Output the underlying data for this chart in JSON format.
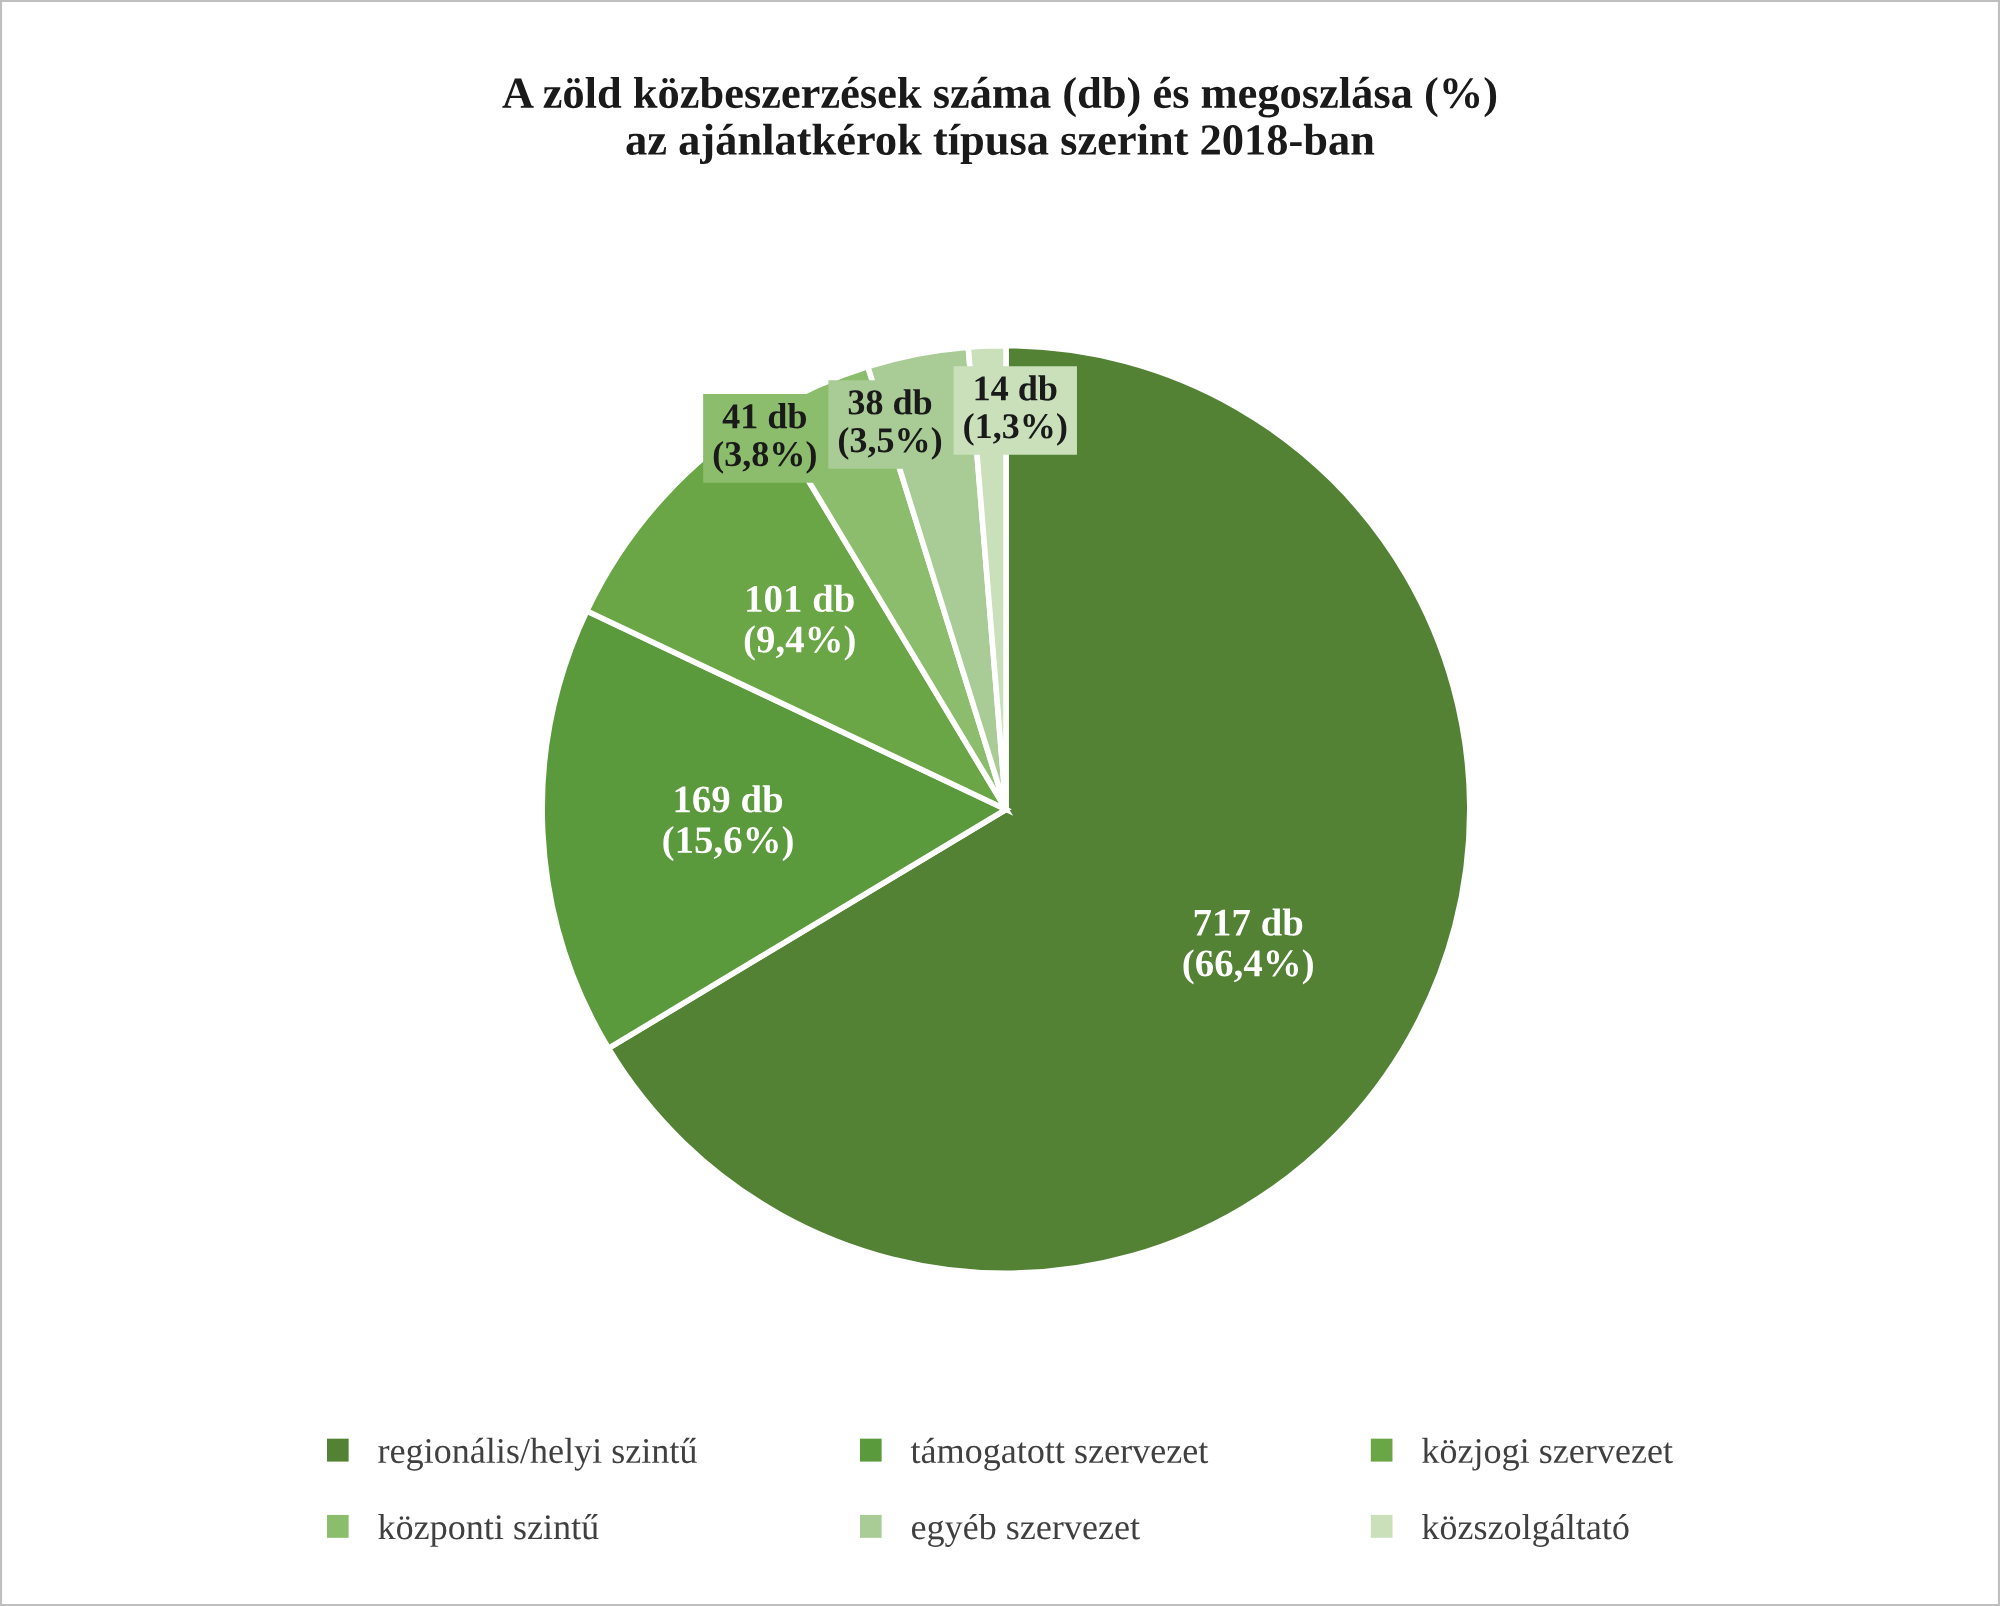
{
  "chart_data": {
    "type": "pie",
    "title": "A zöld közbeszerzések száma (db) és megoszlása (%)\naz ajánlatkérok típusa szerint 2018-ban",
    "categories": [
      "regionális/helyi szintű",
      "támogatott szervezet",
      "közjogi szervezet",
      "központi szintű",
      "egyéb szervezet",
      "közszolgáltató"
    ],
    "values": [
      717,
      169,
      101,
      41,
      38,
      14
    ],
    "colors": [
      "#548235",
      "#5b9a3c",
      "#6aa645",
      "#8cbd6c",
      "#a9cc96",
      "#c9e0bb"
    ],
    "value_labels": [
      "717 db\n(66,4%)",
      "169 db\n(15,6%)",
      "101 db\n(9,4%)",
      "41 db\n(3,8%)",
      "38 db\n(3,5%)",
      "14 db\n(1,3%)"
    ],
    "legend": "bottom"
  }
}
